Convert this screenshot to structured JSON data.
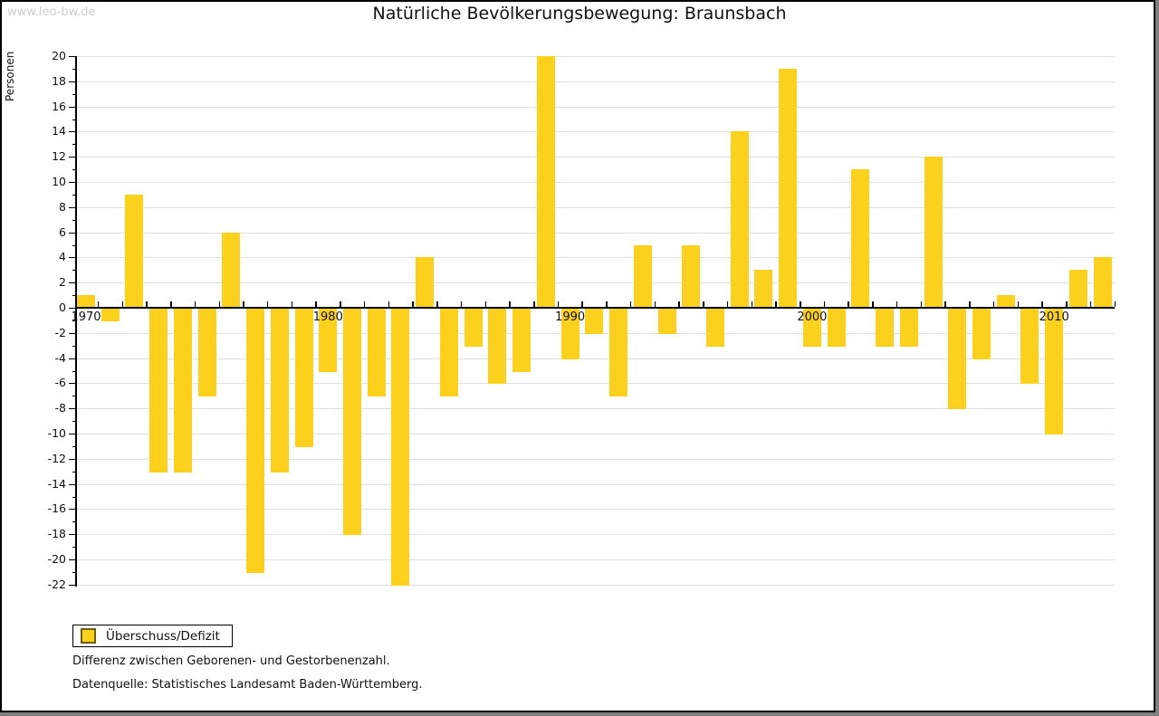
{
  "watermark": "www.leo-bw.de",
  "title": "Natürliche Bevölkerungsbewegung: Braunsbach",
  "legend": {
    "label": "Überschuss/Defizit"
  },
  "footnotes": {
    "description": "Differenz zwischen Geborenen- und Gestorbenenzahl.",
    "source": "Datenquelle: Statistisches Landesamt Baden-Württemberg."
  },
  "colors": {
    "bar": "#FCD11E",
    "swatch_border": "#6e5f00",
    "grid": "#e0e0e0",
    "axis": "#000000",
    "watermark": "#cccccc",
    "shadow": "#7f7f7f"
  },
  "chart_data": {
    "type": "bar",
    "title": "Natürliche Bevölkerungsbewegung: Braunsbach",
    "xlabel": "",
    "ylabel": "Personen",
    "series_name": "Überschuss/Defizit",
    "categories": [
      1970,
      1971,
      1972,
      1973,
      1974,
      1975,
      1976,
      1977,
      1978,
      1979,
      1980,
      1981,
      1982,
      1983,
      1984,
      1985,
      1986,
      1987,
      1988,
      1989,
      1990,
      1991,
      1992,
      1993,
      1994,
      1995,
      1996,
      1997,
      1998,
      1999,
      2000,
      2001,
      2002,
      2003,
      2004,
      2005,
      2006,
      2007,
      2008,
      2009,
      2010,
      2011,
      2012
    ],
    "values": [
      1,
      -1,
      9,
      -13,
      -13,
      -7,
      6,
      -21,
      -13,
      -11,
      -5,
      -18,
      -7,
      -22,
      4,
      -7,
      -3,
      -6,
      -5,
      20,
      -4,
      -2,
      -7,
      5,
      -2,
      5,
      -3,
      14,
      3,
      19,
      -3,
      -3,
      11,
      -3,
      -3,
      12,
      -8,
      -4,
      1,
      -6,
      -10,
      3,
      4
    ],
    "ylim": [
      -22,
      20
    ],
    "ytick_step": 2,
    "xtick_labels": [
      "1970",
      "1980",
      "1990",
      "2000",
      "2010"
    ],
    "grid": true,
    "legend_position": "bottom-left"
  }
}
